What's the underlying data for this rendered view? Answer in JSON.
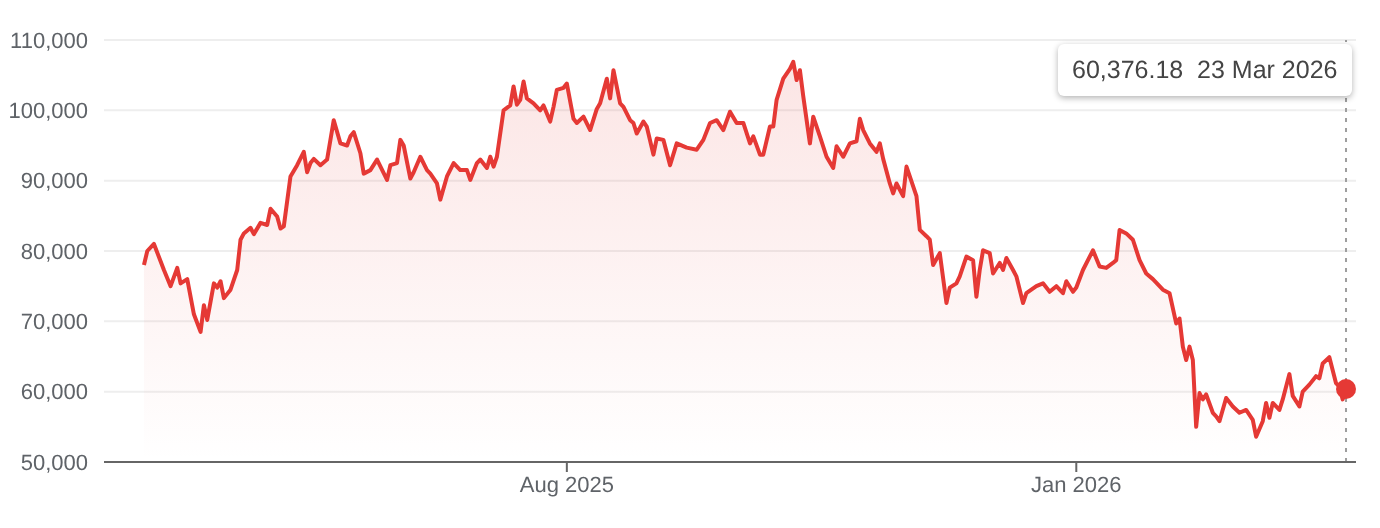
{
  "chart_data": {
    "type": "area",
    "x": [
      "2025-03-27",
      "2025-03-28",
      "2025-03-30",
      "2025-04-02",
      "2025-04-04",
      "2025-04-06",
      "2025-04-07",
      "2025-04-09",
      "2025-04-11",
      "2025-04-13",
      "2025-04-14",
      "2025-04-15",
      "2025-04-17",
      "2025-04-18",
      "2025-04-19",
      "2025-04-20",
      "2025-04-22",
      "2025-04-24",
      "2025-04-25",
      "2025-04-26",
      "2025-04-28",
      "2025-04-29",
      "2025-05-01",
      "2025-05-03",
      "2025-05-04",
      "2025-05-06",
      "2025-05-07",
      "2025-05-08",
      "2025-05-10",
      "2025-05-12",
      "2025-05-14",
      "2025-05-15",
      "2025-05-16",
      "2025-05-17",
      "2025-05-19",
      "2025-05-21",
      "2025-05-23",
      "2025-05-25",
      "2025-05-27",
      "2025-05-28",
      "2025-05-29",
      "2025-05-31",
      "2025-06-01",
      "2025-06-03",
      "2025-06-05",
      "2025-06-08",
      "2025-06-09",
      "2025-06-11",
      "2025-06-12",
      "2025-06-13",
      "2025-06-15",
      "2025-06-16",
      "2025-06-18",
      "2025-06-20",
      "2025-06-21",
      "2025-06-23",
      "2025-06-24",
      "2025-06-26",
      "2025-06-28",
      "2025-06-30",
      "2025-07-02",
      "2025-07-03",
      "2025-07-05",
      "2025-07-06",
      "2025-07-08",
      "2025-07-09",
      "2025-07-10",
      "2025-07-11",
      "2025-07-13",
      "2025-07-15",
      "2025-07-16",
      "2025-07-17",
      "2025-07-18",
      "2025-07-19",
      "2025-07-20",
      "2025-07-22",
      "2025-07-24",
      "2025-07-25",
      "2025-07-27",
      "2025-07-28",
      "2025-07-29",
      "2025-07-31",
      "2025-08-01",
      "2025-08-03",
      "2025-08-04",
      "2025-08-06",
      "2025-08-08",
      "2025-08-10",
      "2025-08-11",
      "2025-08-13",
      "2025-08-14",
      "2025-08-15",
      "2025-08-17",
      "2025-08-18",
      "2025-08-20",
      "2025-08-21",
      "2025-08-22",
      "2025-08-24",
      "2025-08-25",
      "2025-08-27",
      "2025-08-28",
      "2025-08-30",
      "2025-09-01",
      "2025-09-03",
      "2025-09-06",
      "2025-09-09",
      "2025-09-11",
      "2025-09-13",
      "2025-09-15",
      "2025-09-17",
      "2025-09-19",
      "2025-09-21",
      "2025-09-23",
      "2025-09-25",
      "2025-09-26",
      "2025-09-28",
      "2025-09-29",
      "2025-10-01",
      "2025-10-02",
      "2025-10-03",
      "2025-10-05",
      "2025-10-07",
      "2025-10-08",
      "2025-10-09",
      "2025-10-10",
      "2025-10-11",
      "2025-10-13",
      "2025-10-14",
      "2025-10-16",
      "2025-10-18",
      "2025-10-20",
      "2025-10-21",
      "2025-10-23",
      "2025-10-25",
      "2025-10-27",
      "2025-10-28",
      "2025-10-29",
      "2025-10-31",
      "2025-11-02",
      "2025-11-03",
      "2025-11-04",
      "2025-11-06",
      "2025-11-07",
      "2025-11-08",
      "2025-11-10",
      "2025-11-11",
      "2025-11-12",
      "2025-11-14",
      "2025-11-15",
      "2025-11-17",
      "2025-11-18",
      "2025-11-19",
      "2025-11-21",
      "2025-11-23",
      "2025-11-24",
      "2025-11-26",
      "2025-11-27",
      "2025-11-29",
      "2025-12-01",
      "2025-12-02",
      "2025-12-03",
      "2025-12-04",
      "2025-12-06",
      "2025-12-07",
      "2025-12-09",
      "2025-12-10",
      "2025-12-11",
      "2025-12-13",
      "2025-12-14",
      "2025-12-16",
      "2025-12-17",
      "2025-12-20",
      "2025-12-22",
      "2025-12-24",
      "2025-12-26",
      "2025-12-28",
      "2025-12-29",
      "2025-12-31",
      "2026-01-01",
      "2026-01-03",
      "2026-01-06",
      "2026-01-08",
      "2026-01-10",
      "2026-01-12",
      "2026-01-13",
      "2026-01-14",
      "2026-01-16",
      "2026-01-18",
      "2026-01-20",
      "2026-01-22",
      "2026-01-24",
      "2026-01-27",
      "2026-01-29",
      "2026-01-31",
      "2026-02-01",
      "2026-02-02",
      "2026-02-03",
      "2026-02-04",
      "2026-02-05",
      "2026-02-06",
      "2026-02-07",
      "2026-02-08",
      "2026-02-09",
      "2026-02-11",
      "2026-02-12",
      "2026-02-13",
      "2026-02-15",
      "2026-02-17",
      "2026-02-19",
      "2026-02-21",
      "2026-02-23",
      "2026-02-24",
      "2026-02-26",
      "2026-02-27",
      "2026-02-28",
      "2026-03-01",
      "2026-03-03",
      "2026-03-04",
      "2026-03-06",
      "2026-03-07",
      "2026-03-09",
      "2026-03-10",
      "2026-03-12",
      "2026-03-14",
      "2026-03-15",
      "2026-03-16",
      "2026-03-18",
      "2026-03-20",
      "2026-03-21",
      "2026-03-22",
      "2026-03-23"
    ],
    "series": [
      {
        "color": "#e53935",
        "values": [
          78000,
          80000,
          81000,
          77300,
          75000,
          77600,
          75400,
          76000,
          71000,
          68500,
          72300,
          70200,
          75400,
          74800,
          75700,
          73300,
          74500,
          77300,
          81600,
          82500,
          83300,
          82400,
          84000,
          83700,
          86000,
          84900,
          83200,
          83500,
          90600,
          92200,
          94100,
          91200,
          92500,
          93100,
          92200,
          93000,
          98600,
          95300,
          95000,
          96300,
          96900,
          93900,
          91000,
          91500,
          93000,
          90100,
          92200,
          92500,
          95800,
          95000,
          90300,
          91200,
          93400,
          91500,
          91000,
          89600,
          87300,
          90600,
          92500,
          91500,
          91500,
          90100,
          92500,
          93000,
          91800,
          93400,
          92000,
          93400,
          100000,
          100700,
          103400,
          100800,
          101500,
          104100,
          101700,
          101000,
          100000,
          100700,
          98400,
          100500,
          102900,
          103200,
          103800,
          98800,
          98200,
          99100,
          97200,
          100200,
          101000,
          104500,
          101700,
          105700,
          101000,
          100500,
          98600,
          98200,
          96700,
          98400,
          97700,
          93700,
          96000,
          95800,
          92200,
          95300,
          94700,
          94400,
          95800,
          98200,
          98600,
          97200,
          99800,
          98200,
          98200,
          95300,
          96300,
          93700,
          93700,
          97700,
          97700,
          101500,
          104500,
          105900,
          106900,
          104300,
          105700,
          102000,
          95300,
          99100,
          96300,
          93400,
          91800,
          94900,
          93400,
          95300,
          95600,
          98800,
          97200,
          95300,
          94100,
          95300,
          93100,
          89600,
          88200,
          89600,
          87800,
          92000,
          90600,
          87800,
          83000,
          82100,
          81600,
          78000,
          79700,
          72600,
          74800,
          75400,
          76400,
          79200,
          78700,
          73500,
          77300,
          80100,
          79700,
          76800,
          78300,
          77300,
          79000,
          77300,
          76400,
          72600,
          74000,
          75000,
          75400,
          74200,
          75000,
          74000,
          75700,
          74200,
          74800,
          77300,
          80100,
          77800,
          77600,
          78300,
          78700,
          83000,
          82500,
          81600,
          78700,
          76800,
          76000,
          74500,
          74000,
          69700,
          70400,
          66400,
          64500,
          66400,
          64500,
          55000,
          59800,
          58900,
          59600,
          57000,
          56500,
          55800,
          59100,
          57900,
          57000,
          57400,
          56000,
          53600,
          55800,
          58400,
          56300,
          58400,
          57400,
          58900,
          62500,
          59400,
          57900,
          60000,
          61000,
          62200,
          61900,
          64000,
          64900,
          61200,
          60700,
          58900,
          60376.18
        ]
      }
    ],
    "xlim": [
      "2025-03-15",
      "2026-03-26"
    ],
    "xticks": [
      {
        "value": "2025-08-01",
        "label": "Aug 2025"
      },
      {
        "value": "2026-01-01",
        "label": "Jan 2026"
      }
    ],
    "ylim": [
      50000,
      110000
    ],
    "yticks": [
      {
        "value": 50000,
        "label": "50,000"
      },
      {
        "value": 60000,
        "label": "60,000"
      },
      {
        "value": 70000,
        "label": "70,000"
      },
      {
        "value": 80000,
        "label": "80,000"
      },
      {
        "value": 90000,
        "label": "90,000"
      },
      {
        "value": 100000,
        "label": "100,000"
      },
      {
        "value": 110000,
        "label": "110,000"
      }
    ],
    "grid": "y",
    "legend": false,
    "marker": "none",
    "line_style": "solid",
    "ref_lines": [
      {
        "axis": "x",
        "value": "2026-03-23",
        "line_style": "dotted",
        "color": "#9e9e9e"
      }
    ],
    "annotations": [
      "60,376.18  23 Mar 2026"
    ]
  }
}
